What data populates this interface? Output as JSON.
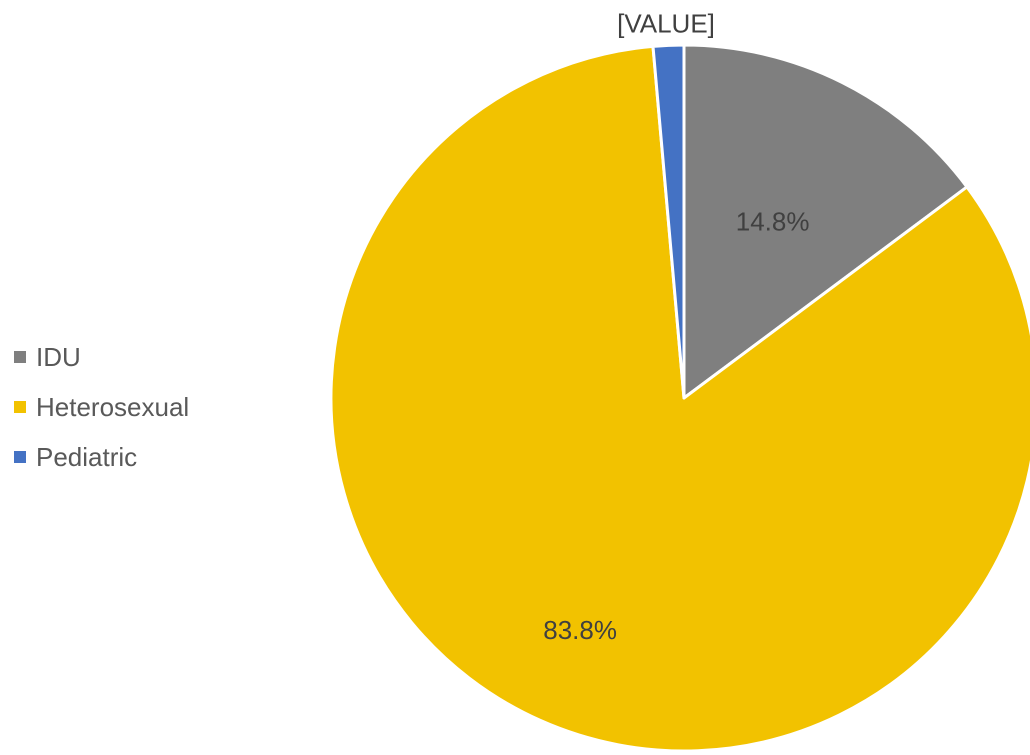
{
  "chart_data": {
    "type": "pie",
    "categories": [
      "IDU",
      "Heterosexual",
      "Pediatric"
    ],
    "values": [
      14.8,
      83.8,
      1.4
    ],
    "data_labels": [
      "14.8%",
      "83.8%",
      "[VALUE]"
    ],
    "colors": [
      "#7f7f7f",
      "#f2c200",
      "#4472c4"
    ],
    "start_angle_deg": 0,
    "direction": "clockwise",
    "legend_position": "left"
  }
}
